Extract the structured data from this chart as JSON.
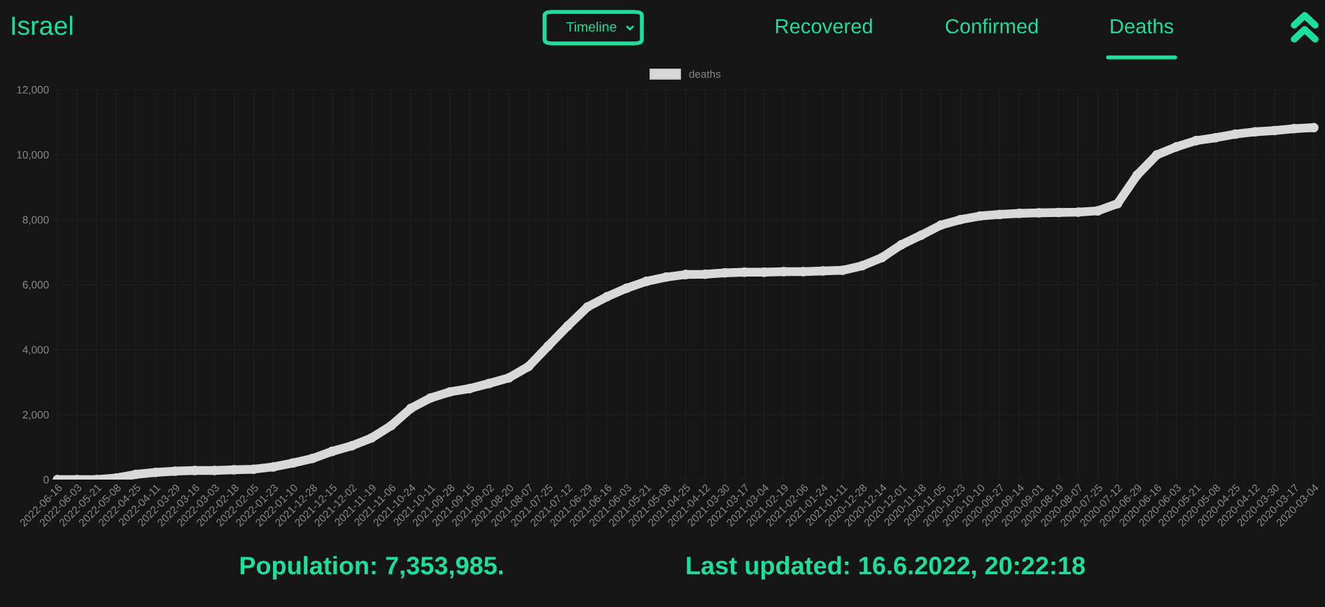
{
  "chart_data": {
    "type": "line",
    "title": "Israel",
    "annotations": [
      "Timeline",
      "Recovered",
      "Confirmed",
      "Deaths",
      "Population: 7,353,985.",
      "Last updated: 16.6.2022, 20:22:18"
    ],
    "categories": [
      "2022-06-16",
      "2022-06-03",
      "2022-05-21",
      "2022-05-08",
      "2022-04-25",
      "2022-04-11",
      "2022-03-29",
      "2022-03-16",
      "2022-03-03",
      "2022-02-18",
      "2022-02-05",
      "2022-01-23",
      "2022-01-10",
      "2021-12-28",
      "2021-12-15",
      "2021-12-02",
      "2021-11-19",
      "2021-11-06",
      "2021-10-24",
      "2021-10-11",
      "2021-09-28",
      "2021-09-15",
      "2021-09-02",
      "2021-08-20",
      "2021-08-07",
      "2021-07-25",
      "2021-07-12",
      "2021-06-29",
      "2021-06-16",
      "2021-06-03",
      "2021-05-21",
      "2021-05-08",
      "2021-04-25",
      "2021-04-12",
      "2021-03-30",
      "2021-03-17",
      "2021-03-04",
      "2021-02-19",
      "2021-02-06",
      "2021-01-24",
      "2021-01-11",
      "2020-12-28",
      "2020-12-14",
      "2020-12-01",
      "2020-11-18",
      "2020-11-05",
      "2020-10-23",
      "2020-10-10",
      "2020-09-27",
      "2020-09-14",
      "2020-09-01",
      "2020-08-19",
      "2020-08-07",
      "2020-07-25",
      "2020-07-12",
      "2020-06-29",
      "2020-06-16",
      "2020-06-03",
      "2020-05-21",
      "2020-05-08",
      "2020-04-25",
      "2020-04-12",
      "2020-03-30",
      "2020-03-17",
      "2020-03-04"
    ],
    "series": [
      {
        "name": "deaths",
        "color": "#d9d9d9",
        "values": [
          0,
          0,
          0,
          50,
          160,
          220,
          260,
          280,
          280,
          300,
          320,
          390,
          510,
          650,
          870,
          1040,
          1280,
          1660,
          2190,
          2510,
          2700,
          2800,
          2960,
          3130,
          3480,
          4110,
          4730,
          5310,
          5630,
          5890,
          6100,
          6230,
          6310,
          6320,
          6360,
          6380,
          6380,
          6400,
          6400,
          6420,
          6440,
          6580,
          6830,
          7230,
          7520,
          7830,
          8000,
          8110,
          8160,
          8190,
          8210,
          8220,
          8230,
          8270,
          8490,
          9370,
          9990,
          10240,
          10430,
          10520,
          10630,
          10700,
          10740,
          10800,
          10830
        ]
      }
    ],
    "ylim": [
      0,
      12000
    ],
    "yticks": [
      0,
      {
        "value": 2000,
        "label": "2,000"
      },
      {
        "value": 4000,
        "label": "4,000"
      },
      {
        "value": 6000,
        "label": "6,000"
      },
      {
        "value": 8000,
        "label": "8,000"
      },
      {
        "value": 10000,
        "label": "10,000"
      },
      {
        "value": 12000,
        "label": "12,000"
      }
    ],
    "grid": true,
    "legend": "top",
    "marker": "circle",
    "line_style": "solid"
  }
}
